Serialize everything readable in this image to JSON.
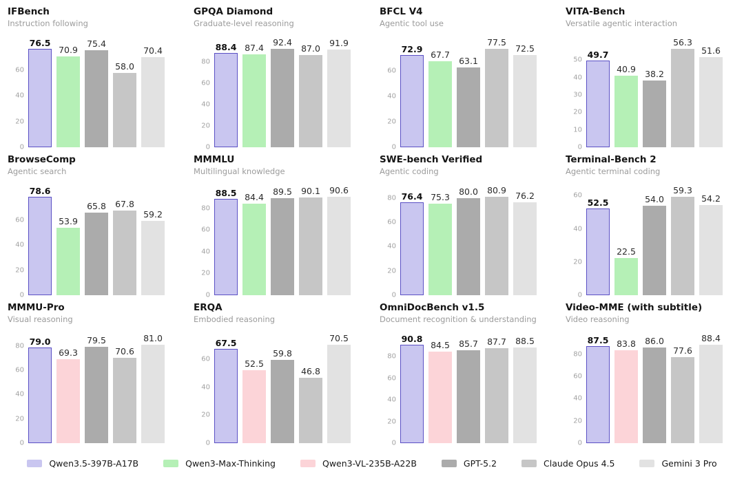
{
  "page": {
    "background": "#ffffff"
  },
  "colors": {
    "highlight_edge": "#5a4fc4",
    "title": "#151515",
    "subtitle": "#9b9b9b",
    "tick_label": "#a2a2a2",
    "value_label": "#2b2b2b"
  },
  "legend": {
    "items": [
      {
        "label": "Qwen3.5-397B-A17B",
        "swatch": "#c9c6f0",
        "edge": "#5a4fc4",
        "highlight": true
      },
      {
        "label": "Qwen3-Max-Thinking",
        "swatch": "#b5f0b6"
      },
      {
        "label": "Qwen3-VL-235B-A22B",
        "swatch": "#fcd4d8"
      },
      {
        "label": "GPT-5.2",
        "swatch": "#ababab"
      },
      {
        "label": "Claude Opus 4.5",
        "swatch": "#c6c6c6"
      },
      {
        "label": "Gemini 3 Pro",
        "swatch": "#e2e2e2"
      }
    ]
  },
  "chart_data": [
    {
      "type": "bar",
      "title": "IFBench",
      "subtitle": "Instruction following",
      "yticks": [
        0,
        20,
        40,
        60
      ],
      "categories": [
        "Qwen3.5-397B-A17B",
        "Qwen3-Max-Thinking",
        "GPT-5.2",
        "Claude Opus 4.5",
        "Gemini 3 Pro"
      ],
      "values": [
        76.5,
        70.9,
        75.4,
        58.0,
        70.4
      ]
    },
    {
      "type": "bar",
      "title": "GPQA Diamond",
      "subtitle": "Graduate-level reasoning",
      "yticks": [
        0,
        20,
        40,
        60,
        80
      ],
      "categories": [
        "Qwen3.5-397B-A17B",
        "Qwen3-Max-Thinking",
        "GPT-5.2",
        "Claude Opus 4.5",
        "Gemini 3 Pro"
      ],
      "values": [
        88.4,
        87.4,
        92.4,
        87.0,
        91.9
      ]
    },
    {
      "type": "bar",
      "title": "BFCL V4",
      "subtitle": "Agentic tool use",
      "yticks": [
        0,
        20,
        40,
        60
      ],
      "categories": [
        "Qwen3.5-397B-A17B",
        "Qwen3-Max-Thinking",
        "GPT-5.2",
        "Claude Opus 4.5",
        "Gemini 3 Pro"
      ],
      "values": [
        72.9,
        67.7,
        63.1,
        77.5,
        72.5
      ]
    },
    {
      "type": "bar",
      "title": "VITA-Bench",
      "subtitle": "Versatile agentic interaction",
      "yticks": [
        0,
        10,
        20,
        30,
        40,
        50
      ],
      "categories": [
        "Qwen3.5-397B-A17B",
        "Qwen3-Max-Thinking",
        "GPT-5.2",
        "Claude Opus 4.5",
        "Gemini 3 Pro"
      ],
      "values": [
        49.7,
        40.9,
        38.2,
        56.3,
        51.6
      ]
    },
    {
      "type": "bar",
      "title": "BrowseComp",
      "subtitle": "Agentic search",
      "yticks": [
        0,
        20,
        40,
        60
      ],
      "categories": [
        "Qwen3.5-397B-A17B",
        "Qwen3-Max-Thinking",
        "GPT-5.2",
        "Claude Opus 4.5",
        "Gemini 3 Pro"
      ],
      "values": [
        78.6,
        53.9,
        65.8,
        67.8,
        59.2
      ]
    },
    {
      "type": "bar",
      "title": "MMMLU",
      "subtitle": "Multilingual knowledge",
      "yticks": [
        0,
        20,
        40,
        60,
        80
      ],
      "categories": [
        "Qwen3.5-397B-A17B",
        "Qwen3-Max-Thinking",
        "GPT-5.2",
        "Claude Opus 4.5",
        "Gemini 3 Pro"
      ],
      "values": [
        88.5,
        84.4,
        89.5,
        90.1,
        90.6
      ]
    },
    {
      "type": "bar",
      "title": "SWE-bench Verified",
      "subtitle": "Agentic coding",
      "yticks": [
        0,
        20,
        40,
        60,
        80
      ],
      "categories": [
        "Qwen3.5-397B-A17B",
        "Qwen3-Max-Thinking",
        "GPT-5.2",
        "Claude Opus 4.5",
        "Gemini 3 Pro"
      ],
      "values": [
        76.4,
        75.3,
        80.0,
        80.9,
        76.2
      ]
    },
    {
      "type": "bar",
      "title": "Terminal-Bench 2",
      "subtitle": "Agentic terminal coding",
      "yticks": [
        0,
        20,
        40,
        60
      ],
      "categories": [
        "Qwen3.5-397B-A17B",
        "Qwen3-Max-Thinking",
        "GPT-5.2",
        "Claude Opus 4.5",
        "Gemini 3 Pro"
      ],
      "values": [
        52.5,
        22.5,
        54.0,
        59.3,
        54.2
      ]
    },
    {
      "type": "bar",
      "title": "MMMU-Pro",
      "subtitle": "Visual reasoning",
      "yticks": [
        0,
        20,
        40,
        60,
        80
      ],
      "categories": [
        "Qwen3.5-397B-A17B",
        "Qwen3-VL-235B-A22B",
        "GPT-5.2",
        "Claude Opus 4.5",
        "Gemini 3 Pro"
      ],
      "values": [
        79.0,
        69.3,
        79.5,
        70.6,
        81.0
      ]
    },
    {
      "type": "bar",
      "title": "ERQA",
      "subtitle": "Embodied reasoning",
      "yticks": [
        0,
        20,
        40,
        60
      ],
      "categories": [
        "Qwen3.5-397B-A17B",
        "Qwen3-VL-235B-A22B",
        "GPT-5.2",
        "Claude Opus 4.5",
        "Gemini 3 Pro"
      ],
      "values": [
        67.5,
        52.5,
        59.8,
        46.8,
        70.5
      ]
    },
    {
      "type": "bar",
      "title": "OmniDocBench v1.5",
      "subtitle": "Document recognition & understanding",
      "yticks": [
        0,
        20,
        40,
        60,
        80
      ],
      "categories": [
        "Qwen3.5-397B-A17B",
        "Qwen3-VL-235B-A22B",
        "GPT-5.2",
        "Claude Opus 4.5",
        "Gemini 3 Pro"
      ],
      "values": [
        90.8,
        84.5,
        85.7,
        87.7,
        88.5
      ]
    },
    {
      "type": "bar",
      "title": "Video-MME (with subtitle)",
      "subtitle": "Video reasoning",
      "yticks": [
        0,
        20,
        40,
        60,
        80
      ],
      "categories": [
        "Qwen3.5-397B-A17B",
        "Qwen3-VL-235B-A22B",
        "GPT-5.2",
        "Claude Opus 4.5",
        "Gemini 3 Pro"
      ],
      "values": [
        87.5,
        83.8,
        86.0,
        77.6,
        88.4
      ]
    }
  ]
}
